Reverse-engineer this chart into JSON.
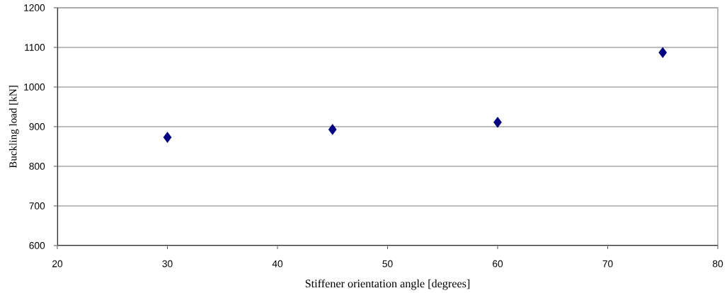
{
  "chart_data": {
    "type": "scatter",
    "xlabel": "Stiffener orientation angle [degrees]",
    "ylabel": "Buckling load [kN]",
    "x": [
      30,
      45,
      60,
      75
    ],
    "values": [
      873,
      893,
      911,
      1087
    ],
    "color": "#000080",
    "marker": "diamond",
    "grid": "y",
    "xlim": [
      20,
      80
    ],
    "xticks": [
      20,
      30,
      40,
      50,
      60,
      70,
      80
    ],
    "ylim": [
      600,
      1200
    ],
    "yticks": [
      600,
      700,
      800,
      900,
      1000,
      1100,
      1200
    ]
  }
}
